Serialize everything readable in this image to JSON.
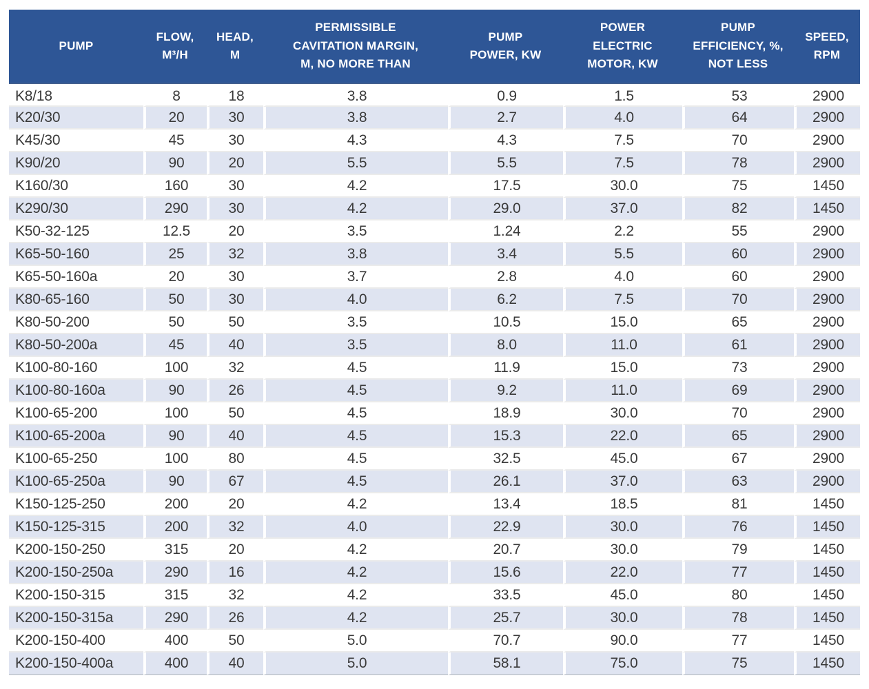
{
  "colors": {
    "header_bg": "#2e5696",
    "header_text": "#ffffff",
    "stripe": "#dfe4f1",
    "body_text": "#3a3a3a"
  },
  "table": {
    "columns": [
      {
        "id": "pump",
        "label": "PUMP"
      },
      {
        "id": "flow",
        "label": "FLOW,\nM³/H"
      },
      {
        "id": "head",
        "label": "HEAD,\nM"
      },
      {
        "id": "cavitation_margin",
        "label": "PERMISSIBLE\nCAVITATION MARGIN,\nM, NO MORE THAN"
      },
      {
        "id": "pump_power",
        "label": "PUMP\nPOWER, KW"
      },
      {
        "id": "motor_power",
        "label": "POWER\nELECTRIC\nMOTOR, KW"
      },
      {
        "id": "efficiency",
        "label": "PUMP\nEFFICIENCY, %,\nNOT LESS"
      },
      {
        "id": "speed",
        "label": "SPEED,\nRPM"
      }
    ],
    "rows": [
      [
        "K8/18",
        "8",
        "18",
        "3.8",
        "0.9",
        "1.5",
        "53",
        "2900"
      ],
      [
        "K20/30",
        "20",
        "30",
        "3.8",
        "2.7",
        "4.0",
        "64",
        "2900"
      ],
      [
        "K45/30",
        "45",
        "30",
        "4.3",
        "4.3",
        "7.5",
        "70",
        "2900"
      ],
      [
        "K90/20",
        "90",
        "20",
        "5.5",
        "5.5",
        "7.5",
        "78",
        "2900"
      ],
      [
        "K160/30",
        "160",
        "30",
        "4.2",
        "17.5",
        "30.0",
        "75",
        "1450"
      ],
      [
        "K290/30",
        "290",
        "30",
        "4.2",
        "29.0",
        "37.0",
        "82",
        "1450"
      ],
      [
        "K50-32-125",
        "12.5",
        "20",
        "3.5",
        "1.24",
        "2.2",
        "55",
        "2900"
      ],
      [
        "K65-50-160",
        "25",
        "32",
        "3.8",
        "3.4",
        "5.5",
        "60",
        "2900"
      ],
      [
        "K65-50-160a",
        "20",
        "30",
        "3.7",
        "2.8",
        "4.0",
        "60",
        "2900"
      ],
      [
        "K80-65-160",
        "50",
        "30",
        "4.0",
        "6.2",
        "7.5",
        "70",
        "2900"
      ],
      [
        "K80-50-200",
        "50",
        "50",
        "3.5",
        "10.5",
        "15.0",
        "65",
        "2900"
      ],
      [
        "K80-50-200a",
        "45",
        "40",
        "3.5",
        "8.0",
        "11.0",
        "61",
        "2900"
      ],
      [
        "K100-80-160",
        "100",
        "32",
        "4.5",
        "11.9",
        "15.0",
        "73",
        "2900"
      ],
      [
        "K100-80-160a",
        "90",
        "26",
        "4.5",
        "9.2",
        "11.0",
        "69",
        "2900"
      ],
      [
        "K100-65-200",
        "100",
        "50",
        "4.5",
        "18.9",
        "30.0",
        "70",
        "2900"
      ],
      [
        "K100-65-200a",
        "90",
        "40",
        "4.5",
        "15.3",
        "22.0",
        "65",
        "2900"
      ],
      [
        "K100-65-250",
        "100",
        "80",
        "4.5",
        "32.5",
        "45.0",
        "67",
        "2900"
      ],
      [
        "K100-65-250a",
        "90",
        "67",
        "4.5",
        "26.1",
        "37.0",
        "63",
        "2900"
      ],
      [
        "K150-125-250",
        "200",
        "20",
        "4.2",
        "13.4",
        "18.5",
        "81",
        "1450"
      ],
      [
        "K150-125-315",
        "200",
        "32",
        "4.0",
        "22.9",
        "30.0",
        "76",
        "1450"
      ],
      [
        "K200-150-250",
        "315",
        "20",
        "4.2",
        "20.7",
        "30.0",
        "79",
        "1450"
      ],
      [
        "K200-150-250a",
        "290",
        "16",
        "4.2",
        "15.6",
        "22.0",
        "77",
        "1450"
      ],
      [
        "K200-150-315",
        "315",
        "32",
        "4.2",
        "33.5",
        "45.0",
        "80",
        "1450"
      ],
      [
        "K200-150-315a",
        "290",
        "26",
        "4.2",
        "25.7",
        "30.0",
        "78",
        "1450"
      ],
      [
        "K200-150-400",
        "400",
        "50",
        "5.0",
        "70.7",
        "90.0",
        "77",
        "1450"
      ],
      [
        "K200-150-400a",
        "400",
        "40",
        "5.0",
        "58.1",
        "75.0",
        "75",
        "1450"
      ]
    ]
  }
}
